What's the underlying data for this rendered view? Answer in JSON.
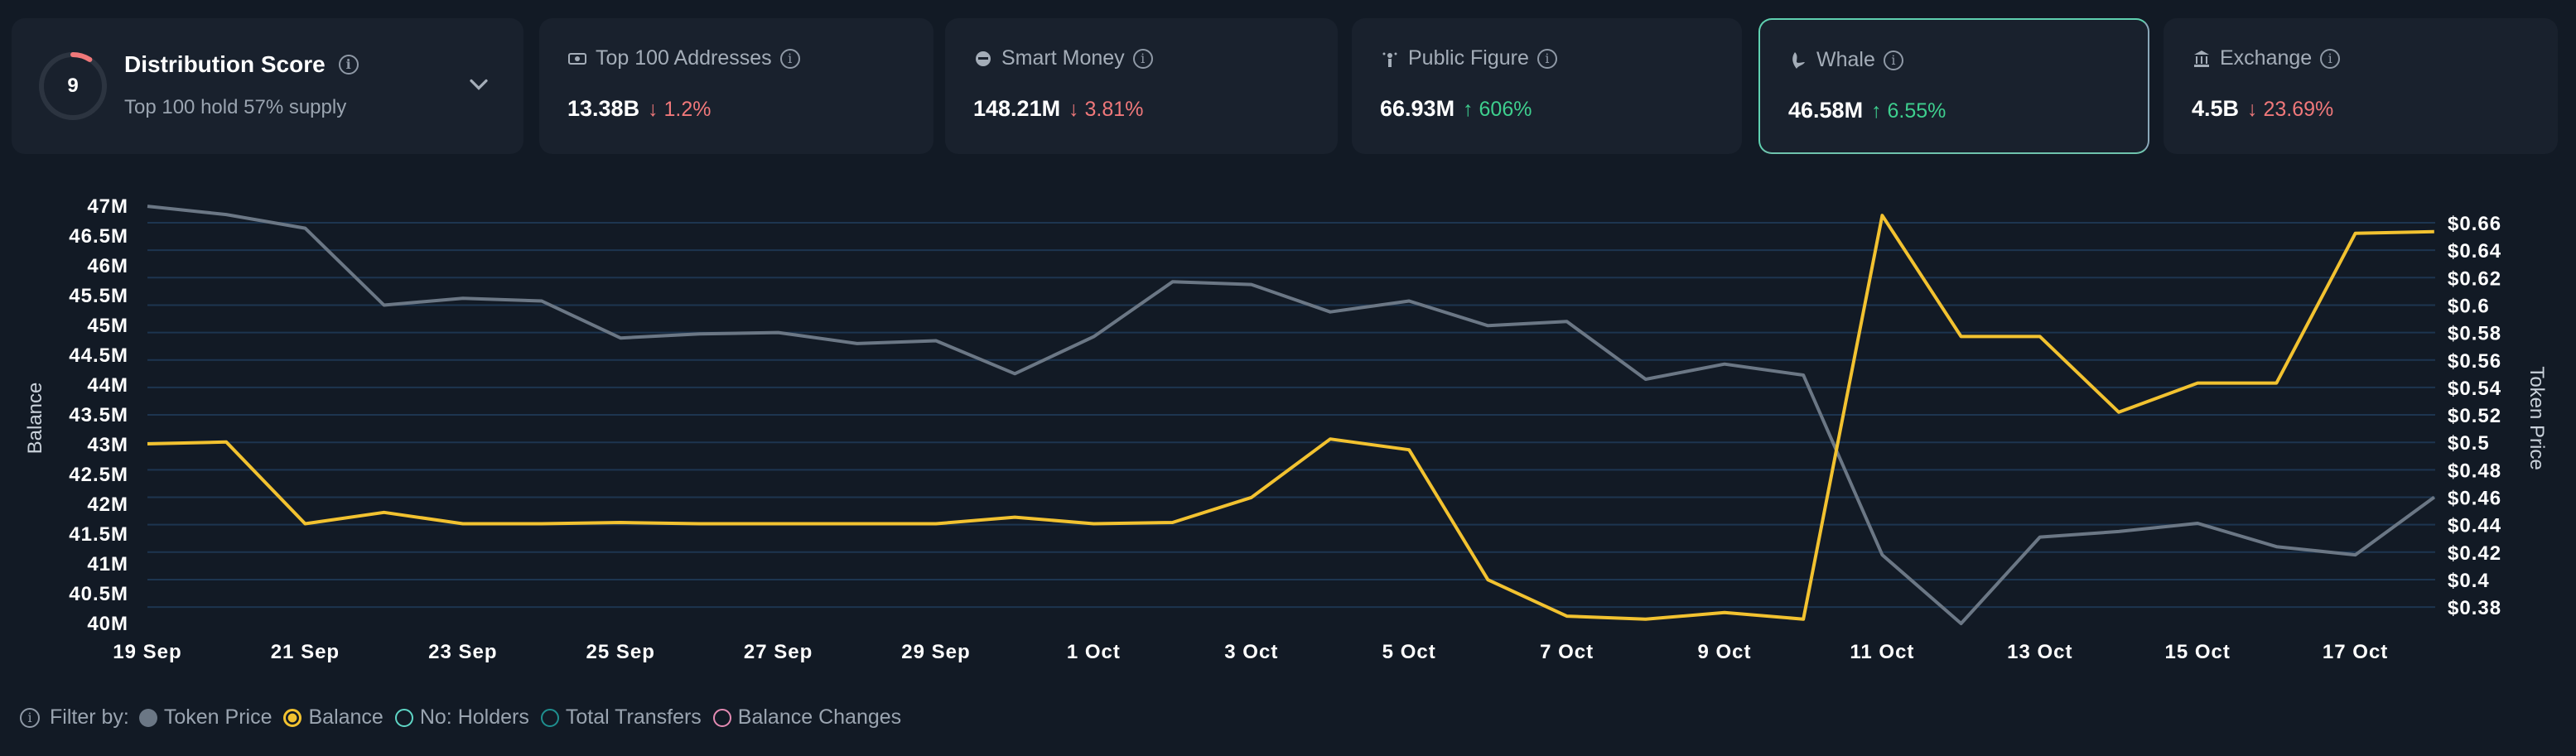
{
  "distribution": {
    "score": "9",
    "score_fraction": 0.09,
    "title": "Distribution Score",
    "subtitle": "Top 100 hold 57% supply"
  },
  "metrics": [
    {
      "icon": "money-icon",
      "title": "Top 100 Addresses",
      "value": "13.38B",
      "change": "1.2%",
      "direction": "down"
    },
    {
      "icon": "smart-money-icon",
      "title": "Smart Money",
      "value": "148.21M",
      "change": "3.81%",
      "direction": "down"
    },
    {
      "icon": "public-figure-icon",
      "title": "Public Figure",
      "value": "66.93M",
      "change": "606%",
      "direction": "up"
    },
    {
      "icon": "whale-icon",
      "title": "Whale",
      "value": "46.58M",
      "change": "6.55%",
      "direction": "up",
      "selected": true
    },
    {
      "icon": "bank-icon",
      "title": "Exchange",
      "value": "4.5B",
      "change": "23.69%",
      "direction": "down"
    }
  ],
  "chart_data": {
    "type": "line",
    "ylabel": "Balance",
    "y2label": "Token Price",
    "ylim": [
      40,
      47
    ],
    "y_ticks": [
      "47M",
      "46.5M",
      "46M",
      "45.5M",
      "45M",
      "44.5M",
      "44M",
      "43.5M",
      "43M",
      "42.5M",
      "42M",
      "41.5M",
      "41M",
      "40.5M",
      "40M"
    ],
    "y2lim": [
      0.38,
      0.66
    ],
    "y2_ticks": [
      "$0.66",
      "$0.64",
      "$0.62",
      "$0.6",
      "$0.58",
      "$0.56",
      "$0.54",
      "$0.52",
      "$0.5",
      "$0.48",
      "$0.46",
      "$0.44",
      "$0.42",
      "$0.4",
      "$0.38"
    ],
    "x_ticks": [
      "19 Sep",
      "21 Sep",
      "23 Sep",
      "25 Sep",
      "27 Sep",
      "29 Sep",
      "1 Oct",
      "3 Oct",
      "5 Oct",
      "7 Oct",
      "9 Oct",
      "11 Oct",
      "13 Oct",
      "15 Oct",
      "17 Oct"
    ],
    "x": [
      "19 Sep",
      "20 Sep",
      "21 Sep",
      "22 Sep",
      "23 Sep",
      "24 Sep",
      "25 Sep",
      "26 Sep",
      "27 Sep",
      "28 Sep",
      "29 Sep",
      "30 Sep",
      "1 Oct",
      "2 Oct",
      "3 Oct",
      "4 Oct",
      "5 Oct",
      "6 Oct",
      "7 Oct",
      "8 Oct",
      "9 Oct",
      "10 Oct",
      "11 Oct",
      "12 Oct",
      "13 Oct",
      "14 Oct",
      "15 Oct",
      "16 Oct",
      "17 Oct",
      "18 Oct"
    ],
    "grid": true,
    "series": [
      {
        "name": "Balance",
        "axis": "left",
        "color": "#f2c230",
        "values": [
          43.0,
          43.03,
          41.66,
          41.85,
          41.66,
          41.66,
          41.68,
          41.66,
          41.66,
          41.66,
          41.66,
          41.77,
          41.66,
          41.68,
          42.1,
          43.08,
          42.9,
          40.72,
          40.11,
          40.06,
          40.17,
          40.06,
          46.83,
          44.8,
          44.8,
          43.53,
          44.02,
          44.02,
          46.53,
          46.56
        ]
      },
      {
        "name": "Token Price",
        "axis": "right",
        "color": "#6b7785",
        "values": [
          0.672,
          0.666,
          0.656,
          0.6,
          0.605,
          0.603,
          0.576,
          0.579,
          0.58,
          0.572,
          0.574,
          0.55,
          0.577,
          0.617,
          0.615,
          0.595,
          0.603,
          0.585,
          0.588,
          0.546,
          0.557,
          0.549,
          0.418,
          0.368,
          0.431,
          0.435,
          0.441,
          0.424,
          0.418,
          0.46
        ]
      }
    ]
  },
  "filters": {
    "label": "Filter by:",
    "items": [
      {
        "label": "Token Price",
        "color": "#6b7785",
        "state": "filled"
      },
      {
        "label": "Balance",
        "color": "#f2c230",
        "state": "selected"
      },
      {
        "label": "No: Holders",
        "color": "#5fd6c6",
        "state": "off"
      },
      {
        "label": "Total Transfers",
        "color": "#1f8f8f",
        "state": "off"
      },
      {
        "label": "Balance Changes",
        "color": "#e48bb3",
        "state": "off"
      }
    ]
  }
}
